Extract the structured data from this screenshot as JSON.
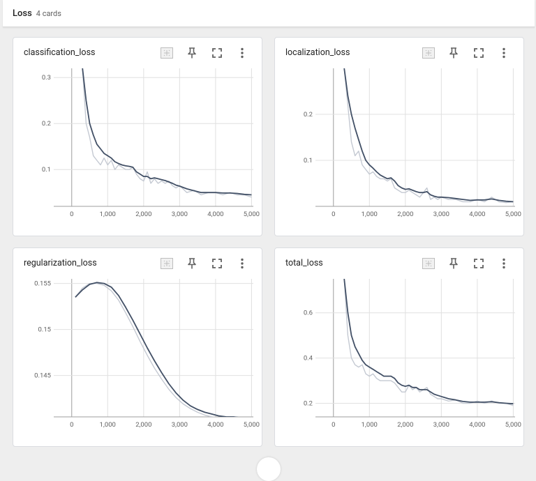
{
  "group": {
    "title": "Loss",
    "count": "4 cards"
  },
  "cards": [
    {
      "id": "classification_loss",
      "title": "classification_loss",
      "chart_data": {
        "type": "line",
        "xticks": [
          0,
          1000,
          2000,
          3000,
          4000,
          5000
        ],
        "xtick_labels": [
          "0",
          "1,000",
          "2,000",
          "3,000",
          "4,000",
          "5,000"
        ],
        "yticks": [
          0.1,
          0.2,
          0.3
        ],
        "ytick_labels": [
          "0.1",
          "0.2",
          "0.3"
        ],
        "xlim": [
          -500,
          5050
        ],
        "ylim": [
          0.02,
          0.32
        ],
        "grid": true,
        "series": [
          {
            "role": "raw",
            "x": [
              300,
              400,
              500,
              600,
              700,
              800,
              900,
              1000,
              1100,
              1200,
              1300,
              1400,
              1500,
              1600,
              1700,
              1800,
              1900,
              2000,
              2100,
              2200,
              2300,
              2400,
              2500,
              2600,
              2700,
              2800,
              2900,
              3000,
              3200,
              3400,
              3600,
              3800,
              4000,
              4200,
              4400,
              4600,
              4800,
              5000
            ],
            "y": [
              0.32,
              0.2,
              0.17,
              0.13,
              0.12,
              0.11,
              0.125,
              0.11,
              0.12,
              0.1,
              0.11,
              0.105,
              0.1,
              0.1,
              0.105,
              0.09,
              0.08,
              0.075,
              0.095,
              0.07,
              0.08,
              0.07,
              0.075,
              0.07,
              0.075,
              0.065,
              0.06,
              0.065,
              0.05,
              0.055,
              0.045,
              0.05,
              0.05,
              0.045,
              0.05,
              0.045,
              0.045,
              0.04
            ]
          },
          {
            "role": "smoothed",
            "x": [
              300,
              400,
              500,
              600,
              700,
              800,
              900,
              1000,
              1100,
              1200,
              1300,
              1400,
              1500,
              1600,
              1700,
              1800,
              1900,
              2000,
              2100,
              2200,
              2300,
              2400,
              2500,
              2600,
              2700,
              2800,
              2900,
              3000,
              3200,
              3400,
              3600,
              3800,
              4000,
              4200,
              4400,
              4600,
              4800,
              5000
            ],
            "y": [
              0.32,
              0.25,
              0.2,
              0.175,
              0.155,
              0.145,
              0.135,
              0.13,
              0.125,
              0.117,
              0.113,
              0.11,
              0.108,
              0.107,
              0.105,
              0.095,
              0.09,
              0.085,
              0.085,
              0.08,
              0.082,
              0.08,
              0.078,
              0.076,
              0.073,
              0.07,
              0.066,
              0.064,
              0.058,
              0.054,
              0.05,
              0.05,
              0.05,
              0.049,
              0.049,
              0.048,
              0.046,
              0.045
            ]
          }
        ]
      }
    },
    {
      "id": "localization_loss",
      "title": "localization_loss",
      "chart_data": {
        "type": "line",
        "xticks": [
          0,
          1000,
          2000,
          3000,
          4000,
          5000
        ],
        "xtick_labels": [
          "0",
          "1,000",
          "2,000",
          "3,000",
          "4,000",
          "5,000"
        ],
        "yticks": [
          0.1,
          0.2
        ],
        "ytick_labels": [
          "0.1",
          "0.2"
        ],
        "xlim": [
          -500,
          5050
        ],
        "ylim": [
          0.0,
          0.3
        ],
        "grid": true,
        "series": [
          {
            "role": "raw",
            "x": [
              300,
              400,
              500,
              600,
              700,
              800,
              900,
              1000,
              1100,
              1200,
              1300,
              1400,
              1500,
              1600,
              1700,
              1800,
              1900,
              2000,
              2100,
              2200,
              2300,
              2400,
              2500,
              2600,
              2700,
              2800,
              2900,
              3000,
              3200,
              3400,
              3600,
              3800,
              4000,
              4200,
              4400,
              4600,
              4800,
              5000
            ],
            "y": [
              0.3,
              0.22,
              0.14,
              0.11,
              0.12,
              0.09,
              0.08,
              0.07,
              0.075,
              0.065,
              0.06,
              0.06,
              0.055,
              0.06,
              0.04,
              0.035,
              0.03,
              0.03,
              0.035,
              0.03,
              0.025,
              0.02,
              0.03,
              0.04,
              0.015,
              0.02,
              0.015,
              0.02,
              0.015,
              0.015,
              0.01,
              0.01,
              0.015,
              0.01,
              0.02,
              0.01,
              0.008,
              0.01
            ]
          },
          {
            "role": "smoothed",
            "x": [
              300,
              400,
              500,
              600,
              700,
              800,
              900,
              1000,
              1100,
              1200,
              1300,
              1400,
              1500,
              1600,
              1700,
              1800,
              1900,
              2000,
              2100,
              2200,
              2300,
              2400,
              2500,
              2600,
              2700,
              2800,
              2900,
              3000,
              3200,
              3400,
              3600,
              3800,
              4000,
              4200,
              4400,
              4600,
              4800,
              5000
            ],
            "y": [
              0.3,
              0.24,
              0.2,
              0.17,
              0.145,
              0.12,
              0.1,
              0.09,
              0.083,
              0.075,
              0.068,
              0.064,
              0.06,
              0.062,
              0.055,
              0.045,
              0.04,
              0.037,
              0.038,
              0.035,
              0.032,
              0.03,
              0.03,
              0.032,
              0.025,
              0.022,
              0.02,
              0.02,
              0.019,
              0.017,
              0.015,
              0.013,
              0.014,
              0.014,
              0.016,
              0.013,
              0.011,
              0.01
            ]
          }
        ]
      }
    },
    {
      "id": "regularization_loss",
      "title": "regularization_loss",
      "chart_data": {
        "type": "line",
        "xticks": [
          0,
          1000,
          2000,
          3000,
          4000,
          5000
        ],
        "xtick_labels": [
          "0",
          "1,000",
          "2,000",
          "3,000",
          "4,000",
          "5,000"
        ],
        "yticks": [
          0.145,
          0.15,
          0.155
        ],
        "ytick_labels": [
          "0.145",
          "0.15",
          "0.155"
        ],
        "xlim": [
          -500,
          5050
        ],
        "ylim": [
          0.1405,
          0.1555
        ],
        "grid": true,
        "series": [
          {
            "role": "raw",
            "x": [
              100,
              300,
              500,
              700,
              900,
              1100,
              1300,
              1500,
              1700,
              1900,
              2100,
              2300,
              2500,
              2700,
              2900,
              3100,
              3300,
              3500,
              3700,
              3900,
              4100,
              4300,
              4500,
              4700,
              4900,
              5000
            ],
            "y": [
              0.1535,
              0.1545,
              0.155,
              0.155,
              0.1548,
              0.1542,
              0.1532,
              0.1518,
              0.1503,
              0.1487,
              0.1472,
              0.1458,
              0.1446,
              0.1435,
              0.1426,
              0.1419,
              0.1414,
              0.141,
              0.1407,
              0.1405,
              0.1404,
              0.1403,
              0.1403,
              0.1403,
              0.1403,
              0.1403
            ]
          },
          {
            "role": "smoothed",
            "x": [
              100,
              300,
              500,
              700,
              900,
              1100,
              1300,
              1500,
              1700,
              1900,
              2100,
              2300,
              2500,
              2700,
              2900,
              3100,
              3300,
              3500,
              3700,
              3900,
              4100,
              4300,
              4500,
              4700,
              4900,
              5000
            ],
            "y": [
              0.1535,
              0.1543,
              0.1549,
              0.1551,
              0.155,
              0.1546,
              0.1537,
              0.1524,
              0.151,
              0.1495,
              0.148,
              0.1466,
              0.1453,
              0.1441,
              0.1431,
              0.1423,
              0.1417,
              0.1413,
              0.141,
              0.1408,
              0.1406,
              0.1405,
              0.1405,
              0.1404,
              0.1404,
              0.1404
            ]
          }
        ]
      }
    },
    {
      "id": "total_loss",
      "title": "total_loss",
      "chart_data": {
        "type": "line",
        "xticks": [
          0,
          1000,
          2000,
          3000,
          4000,
          5000
        ],
        "xtick_labels": [
          "0",
          "1,000",
          "2,000",
          "3,000",
          "4,000",
          "5,000"
        ],
        "yticks": [
          0.2,
          0.4,
          0.6
        ],
        "ytick_labels": [
          "0.2",
          "0.4",
          "0.6"
        ],
        "xlim": [
          -500,
          5050
        ],
        "ylim": [
          0.14,
          0.75
        ],
        "grid": true,
        "series": [
          {
            "role": "raw",
            "x": [
              300,
              400,
              500,
              600,
              700,
              800,
              900,
              1000,
              1100,
              1200,
              1300,
              1400,
              1500,
              1600,
              1700,
              1800,
              1900,
              2000,
              2100,
              2200,
              2300,
              2400,
              2500,
              2600,
              2700,
              2800,
              2900,
              3000,
              3200,
              3400,
              3600,
              3800,
              4000,
              4200,
              4400,
              4600,
              4800,
              5000
            ],
            "y": [
              0.75,
              0.5,
              0.4,
              0.37,
              0.36,
              0.37,
              0.33,
              0.32,
              0.33,
              0.31,
              0.3,
              0.3,
              0.3,
              0.3,
              0.29,
              0.27,
              0.25,
              0.25,
              0.28,
              0.26,
              0.27,
              0.25,
              0.26,
              0.27,
              0.24,
              0.23,
              0.22,
              0.22,
              0.21,
              0.215,
              0.2,
              0.2,
              0.21,
              0.2,
              0.21,
              0.2,
              0.2,
              0.19
            ]
          },
          {
            "role": "smoothed",
            "x": [
              300,
              400,
              500,
              600,
              700,
              800,
              900,
              1000,
              1100,
              1200,
              1300,
              1400,
              1500,
              1600,
              1700,
              1800,
              1900,
              2000,
              2100,
              2200,
              2300,
              2400,
              2500,
              2600,
              2700,
              2800,
              2900,
              3000,
              3200,
              3400,
              3600,
              3800,
              4000,
              4200,
              4400,
              4600,
              4800,
              5000
            ],
            "y": [
              0.75,
              0.6,
              0.5,
              0.45,
              0.42,
              0.39,
              0.37,
              0.36,
              0.35,
              0.34,
              0.33,
              0.32,
              0.32,
              0.32,
              0.31,
              0.29,
              0.28,
              0.275,
              0.28,
              0.27,
              0.27,
              0.26,
              0.26,
              0.26,
              0.25,
              0.24,
              0.235,
              0.23,
              0.22,
              0.215,
              0.208,
              0.205,
              0.205,
              0.205,
              0.207,
              0.203,
              0.2,
              0.198
            ]
          }
        ]
      }
    }
  ],
  "colors": {
    "smoothed": "#425066",
    "raw": "#c4c9d2",
    "grid": "#e0e0e0",
    "axis": "#9e9e9e"
  },
  "icons": [
    "fit-domain-icon",
    "pin-icon",
    "fullscreen-icon",
    "more-vert-icon"
  ]
}
